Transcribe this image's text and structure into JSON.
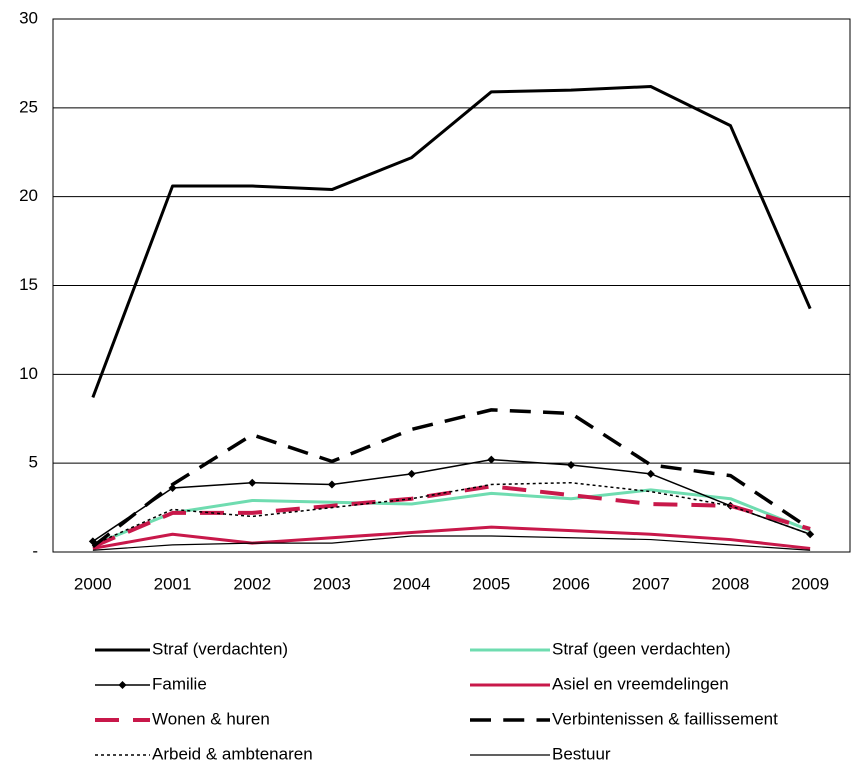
{
  "chart_data": {
    "type": "line",
    "categories": [
      "2000",
      "2001",
      "2002",
      "2003",
      "2004",
      "2005",
      "2006",
      "2007",
      "2008",
      "2009"
    ],
    "ylim": [
      0,
      30
    ],
    "yticks": [
      {
        "value": 0,
        "label": "-"
      },
      5,
      10,
      15,
      20,
      25,
      30
    ],
    "grid": true,
    "legend": "bottom",
    "series": [
      {
        "name": "Straf (verdachten)",
        "color": "#000000",
        "width": 3,
        "style": "solid",
        "values": [
          8.7,
          20.6,
          20.6,
          20.4,
          22.2,
          25.9,
          26.0,
          26.2,
          24.0,
          13.7
        ]
      },
      {
        "name": "Straf (geen verdachten)",
        "color": "#6fdcb0",
        "width": 3,
        "style": "solid",
        "values": [
          0.4,
          2.2,
          2.9,
          2.8,
          2.7,
          3.3,
          3.0,
          3.5,
          3.0,
          1.2
        ]
      },
      {
        "name": "Familie",
        "color": "#000000",
        "width": 1.5,
        "style": "solid",
        "marker": "diamond",
        "values": [
          0.6,
          3.6,
          3.9,
          3.8,
          4.4,
          5.2,
          4.9,
          4.4,
          2.6,
          1.0
        ]
      },
      {
        "name": "Asiel en vreemdelingen",
        "color": "#c8184a",
        "width": 3,
        "style": "solid",
        "values": [
          0.2,
          1.0,
          0.5,
          0.8,
          1.1,
          1.4,
          1.2,
          1.0,
          0.7,
          0.2
        ]
      },
      {
        "name": "Wonen & huren",
        "color": "#c8184a",
        "width": 4,
        "style": "dashed",
        "values": [
          0.3,
          2.2,
          2.2,
          2.6,
          3.0,
          3.7,
          3.2,
          2.7,
          2.6,
          1.3
        ]
      },
      {
        "name": "Verbintenissen & faillissement",
        "color": "#000000",
        "width": 3.5,
        "style": "dashed",
        "values": [
          0.3,
          3.8,
          6.6,
          5.1,
          6.9,
          8.0,
          7.8,
          4.9,
          4.3,
          1.3
        ]
      },
      {
        "name": "Arbeid & ambtenaren",
        "color": "#000000",
        "width": 1.5,
        "style": "dotted",
        "values": [
          0.4,
          2.4,
          2.0,
          2.5,
          3.0,
          3.8,
          3.9,
          3.4,
          2.6,
          1.0
        ]
      },
      {
        "name": "Bestuur",
        "color": "#000000",
        "width": 1.2,
        "style": "solid",
        "values": [
          0.1,
          0.4,
          0.5,
          0.5,
          0.9,
          0.9,
          0.8,
          0.7,
          0.4,
          0.1
        ]
      }
    ]
  }
}
